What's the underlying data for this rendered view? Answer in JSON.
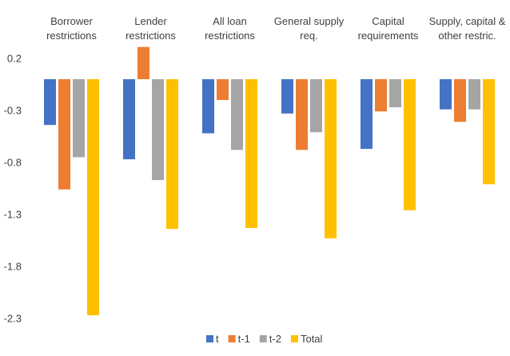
{
  "chart_data": {
    "type": "bar",
    "categories": [
      [
        "Borrower",
        "restrictions"
      ],
      [
        "Lender",
        "restrictions"
      ],
      [
        "All loan",
        "restrictions"
      ],
      [
        "General supply",
        "req."
      ],
      [
        "Capital",
        "requirements"
      ],
      [
        "Supply, capital &",
        "other restric."
      ]
    ],
    "series": [
      {
        "name": "t",
        "color": "#4472C4",
        "values": [
          -0.44,
          -0.77,
          -0.52,
          -0.33,
          -0.67,
          -0.29
        ]
      },
      {
        "name": "t-1",
        "color": "#ED7D31",
        "values": [
          -1.06,
          0.31,
          -0.2,
          -0.68,
          -0.31,
          -0.41
        ]
      },
      {
        "name": "t-2",
        "color": "#A5A5A5",
        "values": [
          -0.75,
          -0.97,
          -0.68,
          -0.51,
          -0.27,
          -0.29
        ]
      },
      {
        "name": "Total",
        "color": "#FFC000",
        "values": [
          -2.27,
          -1.44,
          -1.43,
          -1.53,
          -1.26,
          -1.01
        ]
      }
    ],
    "yticks": [
      "0.2",
      "-0.3",
      "-0.8",
      "-1.3",
      "-1.8",
      "-2.3"
    ],
    "ylim": [
      -2.3,
      0.3
    ],
    "legend_position": "bottom",
    "gridlines": false
  }
}
